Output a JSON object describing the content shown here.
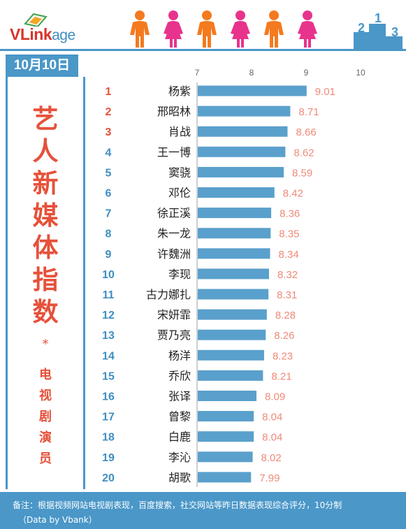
{
  "header": {
    "logo_main": "VLink",
    "logo_sub": "age",
    "podium_numbers": [
      "2",
      "1",
      "3"
    ]
  },
  "date_label": "10月10日",
  "title_chars": [
    "艺",
    "人",
    "新",
    "媒",
    "体",
    "指",
    "数"
  ],
  "star": "*",
  "subtitle_chars": [
    "电",
    "视",
    "剧",
    "演",
    "员"
  ],
  "footer": {
    "note": "备注：根据视频网站电视剧表现，百度搜索，社交网站等昨日数据表现综合评分，10分制",
    "source": "（Data by Vbank）"
  },
  "colors": {
    "bar": "#5aa0cc",
    "rank": "#e6513a",
    "rank_blue": "#3f8ec2",
    "value": "#f08a7a",
    "accent": "#4a97c8",
    "orange_figure": "#f47a1f",
    "pink_figure": "#e8338c"
  },
  "chart_data": {
    "type": "bar",
    "orientation": "horizontal",
    "xlim": [
      7,
      10
    ],
    "xticks": [
      "7",
      "8",
      "9",
      "10"
    ],
    "ranks": [
      "1",
      "2",
      "3",
      "4",
      "5",
      "6",
      "7",
      "8",
      "9",
      "10",
      "11",
      "12",
      "13",
      "14",
      "15",
      "16",
      "17",
      "18",
      "19",
      "20"
    ],
    "categories": [
      "杨紫",
      "邢昭林",
      "肖战",
      "王一博",
      "窦骁",
      "邓伦",
      "徐正溪",
      "朱一龙",
      "许魏洲",
      "李现",
      "古力娜扎",
      "宋妍霏",
      "贾乃亮",
      "杨洋",
      "乔欣",
      "张译",
      "曾黎",
      "白鹿",
      "李沁",
      "胡歌"
    ],
    "values": [
      9.01,
      8.71,
      8.66,
      8.62,
      8.59,
      8.42,
      8.36,
      8.35,
      8.34,
      8.32,
      8.31,
      8.28,
      8.26,
      8.23,
      8.21,
      8.09,
      8.04,
      8.04,
      8.02,
      7.99
    ],
    "value_labels": [
      "9.01",
      "8.71",
      "8.66",
      "8.62",
      "8.59",
      "8.42",
      "8.36",
      "8.35",
      "8.34",
      "8.32",
      "8.31",
      "8.28",
      "8.26",
      "8.23",
      "8.21",
      "8.09",
      "8.04",
      "8.04",
      "8.02",
      "7.99"
    ],
    "grid": false
  }
}
